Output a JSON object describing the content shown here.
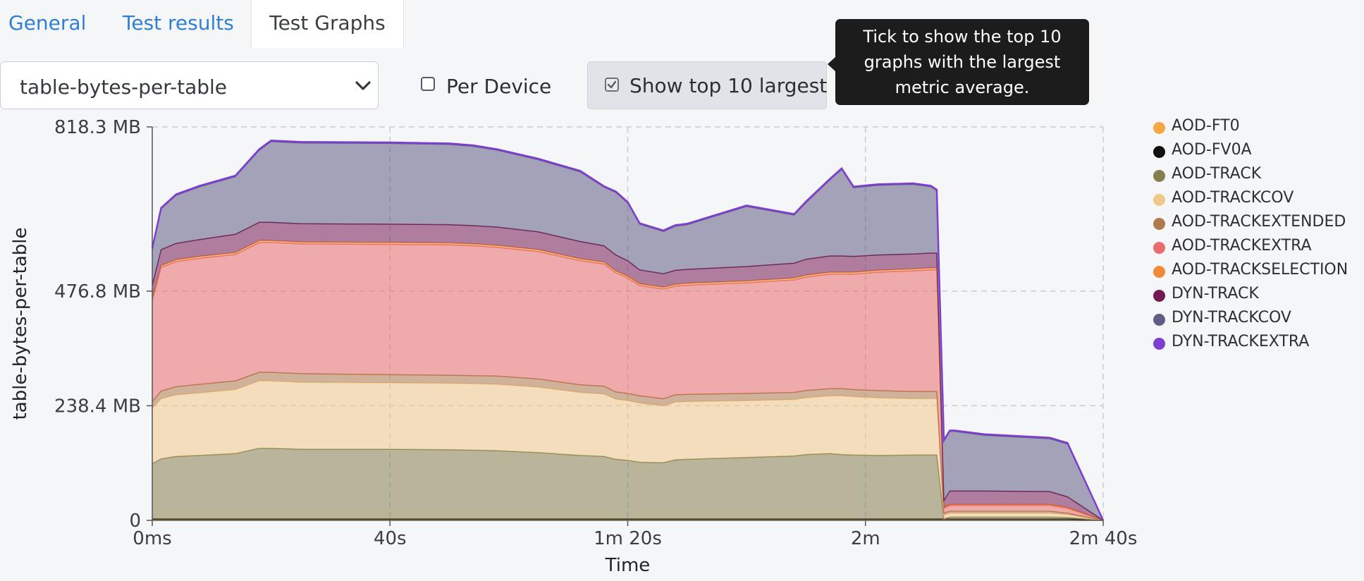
{
  "tabs": [
    {
      "label": "General"
    },
    {
      "label": "Test results"
    },
    {
      "label": "Test Graphs"
    }
  ],
  "controls": {
    "metric_select": "table-bytes-per-table",
    "per_device": {
      "label": "Per Device",
      "checked": false
    },
    "top10": {
      "label": "Show top 10 largest",
      "checked": true
    },
    "tooltip": [
      "Tick to show the top 10",
      "graphs with the largest",
      "metric average."
    ]
  },
  "chart_data": {
    "type": "area",
    "stacked": true,
    "ylabel": "table-bytes-per-table",
    "xlabel": "Time",
    "ylim": [
      0,
      818.3
    ],
    "y_unit": "MB",
    "y_ticks": [
      0,
      238.4,
      476.8,
      818.3
    ],
    "y_tick_labels": [
      "0",
      "238.4 MB",
      "476.8 MB",
      "818.3 MB"
    ],
    "xlim": [
      0,
      160
    ],
    "x_unit": "s",
    "x_ticks": [
      0,
      40,
      80,
      120,
      160
    ],
    "x_tick_labels": [
      "0ms",
      "40s",
      "1m 20s",
      "2m",
      "2m 40s"
    ],
    "grid": true,
    "legend_position": "right",
    "x": [
      0,
      1.5,
      4,
      8,
      14,
      18,
      20,
      25,
      40,
      50,
      54,
      58,
      65,
      72,
      76,
      78,
      80,
      82,
      86,
      88,
      90,
      100,
      108,
      110,
      114,
      116,
      118,
      122,
      128,
      131,
      132,
      133.2,
      134.2,
      135,
      140,
      151,
      154,
      160
    ],
    "series": [
      {
        "name": "AOD-FT0",
        "color": "#f5a742",
        "values": [
          2,
          2,
          2,
          2,
          2,
          2,
          2,
          2,
          2,
          2,
          2,
          2,
          2,
          2,
          2,
          2,
          2,
          2,
          2,
          2,
          2,
          2,
          2,
          2,
          2,
          2,
          2,
          2,
          2,
          2,
          2,
          2,
          2,
          2,
          2,
          2,
          2,
          0
        ]
      },
      {
        "name": "AOD-FV0A",
        "color": "#111111",
        "values": [
          1,
          1,
          1,
          1,
          1,
          1,
          1,
          1,
          1,
          1,
          1,
          1,
          1,
          1,
          1,
          1,
          1,
          1,
          1,
          1,
          1,
          1,
          1,
          1,
          1,
          1,
          1,
          1,
          1,
          1,
          1,
          1,
          1,
          1,
          1,
          1,
          1,
          0
        ]
      },
      {
        "name": "AOD-TRACK",
        "color": "#857f4c",
        "values": [
          115,
          125,
          130,
          132,
          136,
          147,
          147,
          145,
          145,
          144,
          143,
          142,
          138,
          132,
          130,
          124,
          122,
          118,
          117,
          123,
          124,
          128,
          131,
          134,
          136,
          134,
          133,
          132,
          133,
          133,
          133,
          0,
          4,
          4,
          4,
          4,
          3,
          0
        ]
      },
      {
        "name": "AOD-TRACKCOV",
        "color": "#f0c98a",
        "values": [
          115,
          125,
          128,
          130,
          133,
          140,
          140,
          139,
          138,
          138,
          138,
          138,
          136,
          131,
          130,
          125,
          124,
          123,
          118,
          120,
          120,
          118,
          117,
          118,
          120,
          122,
          121,
          120,
          117,
          117,
          117,
          8,
          8,
          8,
          8,
          8,
          6,
          0
        ]
      },
      {
        "name": "AOD-TRACKEXTENDED",
        "color": "#b07a4c",
        "values": [
          14,
          16,
          17,
          18,
          18,
          18,
          18,
          18,
          17,
          17,
          17,
          17,
          17,
          16,
          16,
          15,
          15,
          15,
          15,
          15,
          15,
          15,
          15,
          15,
          15,
          15,
          15,
          15,
          15,
          15,
          15,
          4,
          4,
          4,
          4,
          4,
          3,
          0
        ]
      },
      {
        "name": "AOD-TRACKEXTRA",
        "color": "#ea6c6c",
        "values": [
          210,
          257,
          260,
          262,
          263,
          270,
          270,
          270,
          271,
          271,
          270,
          268,
          265,
          258,
          254,
          248,
          240,
          229,
          228,
          226,
          227,
          230,
          234,
          236,
          238,
          238,
          240,
          246,
          251,
          253,
          253,
          10,
          12,
          12,
          12,
          12,
          10,
          0
        ]
      },
      {
        "name": "AOD-TRACKSELECTION",
        "color": "#ee8a3a",
        "values": [
          4,
          4,
          4,
          4,
          4,
          4,
          4,
          4,
          4,
          4,
          4,
          4,
          4,
          4,
          4,
          4,
          4,
          4,
          4,
          4,
          4,
          4,
          4,
          4,
          4,
          4,
          4,
          4,
          4,
          4,
          4,
          2,
          2,
          2,
          2,
          2,
          2,
          0
        ]
      },
      {
        "name": "DYN-TRACK",
        "color": "#741a52",
        "values": [
          28,
          33,
          34,
          35,
          38,
          38,
          38,
          38,
          38,
          38,
          38,
          38,
          37,
          36,
          34,
          33,
          32,
          29,
          28,
          29,
          29,
          30,
          31,
          33,
          34,
          34,
          33,
          32,
          31,
          31,
          31,
          14,
          28,
          28,
          28,
          27,
          22,
          0
        ]
      },
      {
        "name": "DYN-TRACKCOV",
        "color": "#5e5d85",
        "values": [
          75,
          85,
          100,
          110,
          120,
          150,
          168,
          168,
          168,
          167,
          165,
          160,
          150,
          145,
          122,
          130,
          120,
          95,
          88,
          92,
          93,
          125,
          100,
          118,
          158,
          180,
          143,
          145,
          145,
          138,
          130,
          124,
          124,
          124,
          116,
          110,
          110,
          0
        ]
      },
      {
        "name": "DYN-TRACKEXTRA",
        "color": "#7e3ed1",
        "values": [
          2,
          2,
          2,
          2,
          2,
          2,
          2,
          2,
          2,
          2,
          2,
          2,
          2,
          2,
          2,
          2,
          2,
          2,
          2,
          2,
          2,
          2,
          2,
          2,
          2,
          2,
          2,
          2,
          2,
          2,
          2,
          2,
          2,
          2,
          2,
          2,
          2,
          0
        ]
      }
    ]
  }
}
